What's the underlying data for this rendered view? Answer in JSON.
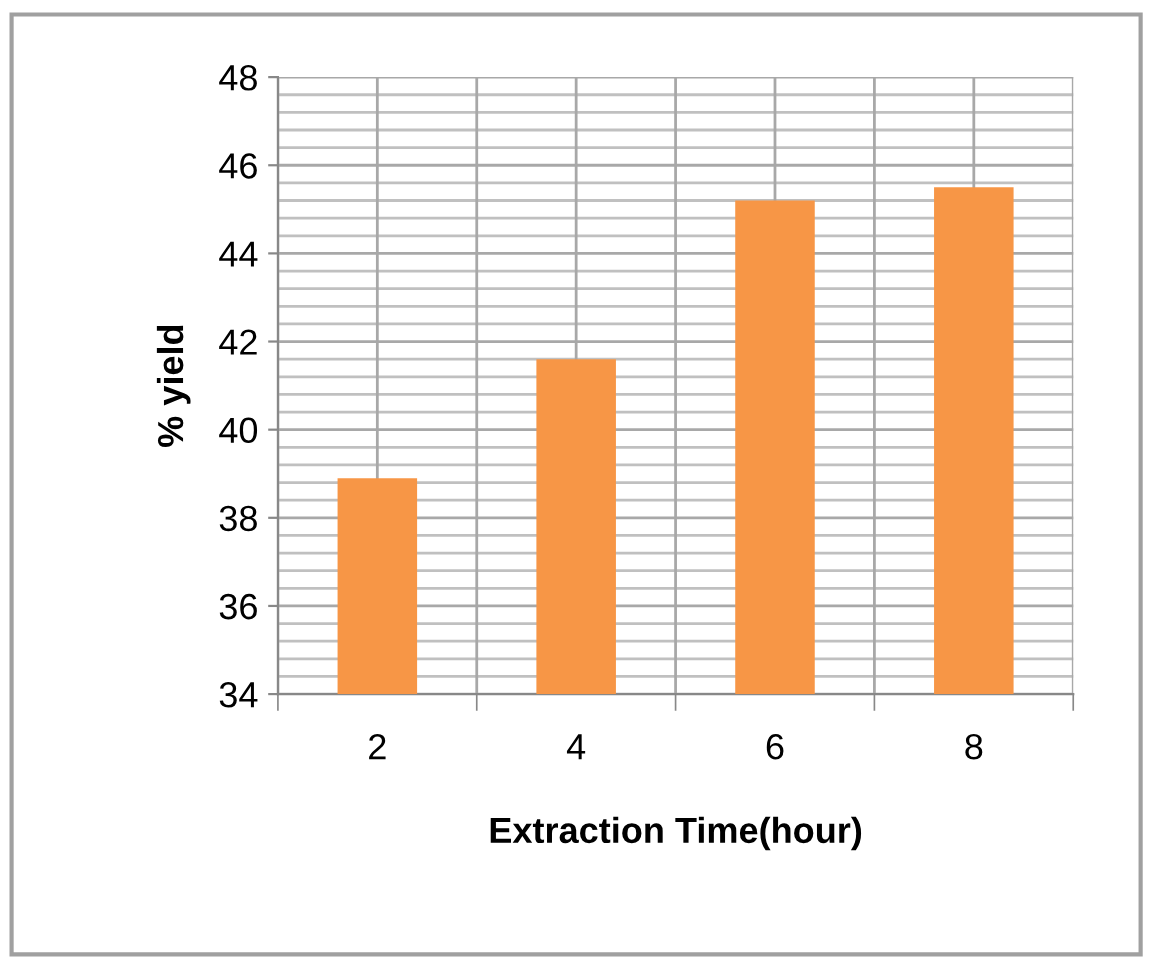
{
  "chart_data": {
    "type": "bar",
    "xlabel": "Extraction Time(hour)",
    "ylabel": "% yield",
    "categories": [
      "2",
      "4",
      "6",
      "8"
    ],
    "values": [
      38.9,
      41.6,
      45.2,
      45.5
    ],
    "color": "#f79646",
    "ylim": [
      34,
      48
    ],
    "yticks": [
      34,
      36,
      38,
      40,
      42,
      44,
      46,
      48
    ],
    "grid": true
  }
}
